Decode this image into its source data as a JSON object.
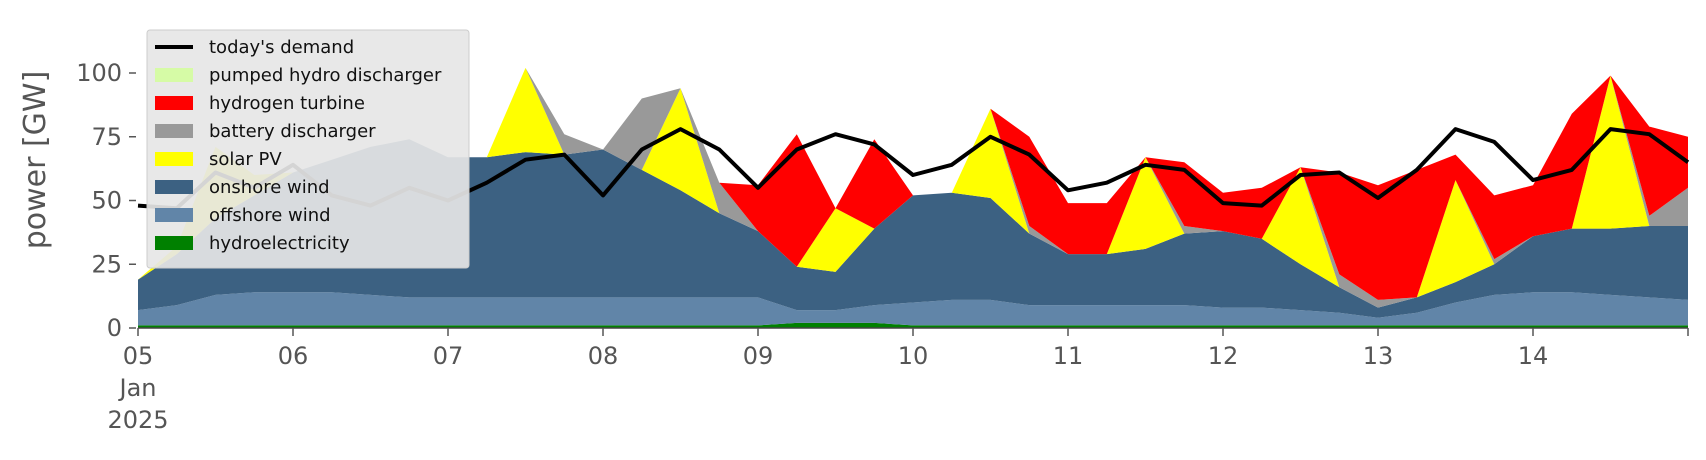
{
  "chart_data": {
    "type": "area",
    "ylabel": "power [GW]",
    "ylim": [
      0,
      120
    ],
    "xlim": [
      "2025-01-05T00:00",
      "2025-01-15T00:00"
    ],
    "x_ticks": [
      {
        "date": "2025-01-05",
        "label": "05",
        "sublabel": [
          "Jan",
          "2025"
        ]
      },
      {
        "date": "2025-01-06",
        "label": "06"
      },
      {
        "date": "2025-01-07",
        "label": "07"
      },
      {
        "date": "2025-01-08",
        "label": "08"
      },
      {
        "date": "2025-01-09",
        "label": "09"
      },
      {
        "date": "2025-01-10",
        "label": "10"
      },
      {
        "date": "2025-01-11",
        "label": "11"
      },
      {
        "date": "2025-01-12",
        "label": "12"
      },
      {
        "date": "2025-01-13",
        "label": "13"
      },
      {
        "date": "2025-01-14",
        "label": "14"
      }
    ],
    "y_ticks": [
      0,
      25,
      50,
      75,
      100
    ],
    "grid": false,
    "legend_position": "top-left",
    "stack_order_bottom_to_top": [
      "hydroelectricity",
      "offshore wind",
      "onshore wind",
      "solar PV",
      "battery discharger",
      "hydrogen turbine",
      "pumped hydro discharger"
    ],
    "x": [
      "2025-01-05T00:00",
      "2025-01-05T06:00",
      "2025-01-05T12:00",
      "2025-01-05T18:00",
      "2025-01-06T00:00",
      "2025-01-06T06:00",
      "2025-01-06T12:00",
      "2025-01-06T18:00",
      "2025-01-07T00:00",
      "2025-01-07T06:00",
      "2025-01-07T12:00",
      "2025-01-07T18:00",
      "2025-01-08T00:00",
      "2025-01-08T06:00",
      "2025-01-08T12:00",
      "2025-01-08T18:00",
      "2025-01-09T00:00",
      "2025-01-09T06:00",
      "2025-01-09T12:00",
      "2025-01-09T18:00",
      "2025-01-10T00:00",
      "2025-01-10T06:00",
      "2025-01-10T12:00",
      "2025-01-10T18:00",
      "2025-01-11T00:00",
      "2025-01-11T06:00",
      "2025-01-11T12:00",
      "2025-01-11T18:00",
      "2025-01-12T00:00",
      "2025-01-12T06:00",
      "2025-01-12T12:00",
      "2025-01-12T18:00",
      "2025-01-13T00:00",
      "2025-01-13T06:00",
      "2025-01-13T12:00",
      "2025-01-13T18:00",
      "2025-01-14T00:00",
      "2025-01-14T06:00",
      "2025-01-14T12:00",
      "2025-01-14T18:00",
      "2025-01-15T00:00"
    ],
    "series": [
      {
        "name": "hydroelectricity",
        "color": "#008000",
        "values": [
          1,
          1,
          1,
          1,
          1,
          1,
          1,
          1,
          1,
          1,
          1,
          1,
          1,
          1,
          1,
          1,
          1,
          2,
          2,
          2,
          1,
          1,
          1,
          1,
          1,
          1,
          1,
          1,
          1,
          1,
          1,
          1,
          1,
          1,
          1,
          1,
          1,
          1,
          1,
          1,
          1
        ]
      },
      {
        "name": "offshore wind",
        "color": "#6185a8",
        "values": [
          6,
          8,
          12,
          13,
          13,
          13,
          12,
          11,
          11,
          11,
          11,
          11,
          11,
          11,
          11,
          11,
          11,
          5,
          5,
          7,
          9,
          10,
          10,
          8,
          8,
          8,
          8,
          8,
          7,
          7,
          6,
          5,
          3,
          5,
          9,
          12,
          13,
          13,
          12,
          11,
          10
        ]
      },
      {
        "name": "onshore wind",
        "color": "#3c6182",
        "values": [
          12,
          20,
          30,
          38,
          47,
          52,
          58,
          62,
          55,
          55,
          57,
          56,
          58,
          50,
          42,
          33,
          26,
          17,
          15,
          30,
          42,
          42,
          40,
          28,
          20,
          20,
          22,
          28,
          30,
          27,
          18,
          10,
          4,
          6,
          8,
          12,
          22,
          25,
          26,
          28,
          29
        ]
      },
      {
        "name": "solar PV",
        "color": "#ffff00",
        "values": [
          0,
          3,
          28,
          8,
          0,
          0,
          0,
          0,
          0,
          0,
          33,
          0,
          0,
          0,
          40,
          0,
          0,
          0,
          25,
          0,
          0,
          0,
          35,
          0,
          0,
          0,
          36,
          0,
          0,
          0,
          38,
          0,
          0,
          0,
          40,
          0,
          0,
          0,
          60,
          0,
          0
        ]
      },
      {
        "name": "battery discharger",
        "color": "#999999",
        "values": [
          0,
          0,
          0,
          0,
          0,
          0,
          0,
          0,
          0,
          0,
          0,
          8,
          0,
          28,
          0,
          12,
          0,
          0,
          0,
          0,
          0,
          0,
          0,
          3,
          0,
          0,
          0,
          3,
          0,
          0,
          0,
          5,
          3,
          0,
          0,
          2,
          0,
          0,
          0,
          4,
          15
        ]
      },
      {
        "name": "hydrogen turbine",
        "color": "#ff0000",
        "values": [
          0,
          0,
          0,
          0,
          0,
          0,
          0,
          0,
          0,
          0,
          0,
          0,
          0,
          0,
          0,
          0,
          18,
          52,
          0,
          35,
          0,
          0,
          0,
          35,
          20,
          20,
          0,
          25,
          15,
          20,
          0,
          40,
          45,
          50,
          10,
          25,
          20,
          45,
          0,
          35,
          20
        ]
      },
      {
        "name": "pumped hydro discharger",
        "color": "#d6fba6",
        "values": [
          0,
          0,
          0,
          0,
          0,
          0,
          0,
          0,
          0,
          0,
          0,
          0,
          0,
          0,
          0,
          0,
          0,
          0,
          0,
          0,
          0,
          0,
          0,
          0,
          0,
          0,
          0,
          0,
          0,
          0,
          0,
          0,
          0,
          0,
          0,
          0,
          0,
          0,
          0,
          0,
          0
        ]
      }
    ],
    "demand": {
      "name": "today's demand",
      "color": "#000000",
      "points": [
        [
          "2025-01-05T00:00",
          48
        ],
        [
          "2025-01-05T06:00",
          47
        ],
        [
          "2025-01-05T12:00",
          61
        ],
        [
          "2025-01-05T18:00",
          55
        ],
        [
          "2025-01-06T00:00",
          64
        ],
        [
          "2025-01-06T06:00",
          52
        ],
        [
          "2025-01-06T12:00",
          48
        ],
        [
          "2025-01-06T18:00",
          55
        ],
        [
          "2025-01-07T00:00",
          50
        ],
        [
          "2025-01-07T06:00",
          57
        ],
        [
          "2025-01-07T12:00",
          66
        ],
        [
          "2025-01-07T18:00",
          68
        ],
        [
          "2025-01-08T00:00",
          52
        ],
        [
          "2025-01-08T06:00",
          70
        ],
        [
          "2025-01-08T12:00",
          78
        ],
        [
          "2025-01-08T18:00",
          70
        ],
        [
          "2025-01-09T00:00",
          55
        ],
        [
          "2025-01-09T06:00",
          70
        ],
        [
          "2025-01-09T12:00",
          76
        ],
        [
          "2025-01-09T18:00",
          72
        ],
        [
          "2025-01-10T00:00",
          60
        ],
        [
          "2025-01-10T06:00",
          64
        ],
        [
          "2025-01-10T12:00",
          75
        ],
        [
          "2025-01-10T18:00",
          68
        ],
        [
          "2025-01-11T00:00",
          54
        ],
        [
          "2025-01-11T06:00",
          57
        ],
        [
          "2025-01-11T12:00",
          64
        ],
        [
          "2025-01-11T18:00",
          62
        ],
        [
          "2025-01-12T00:00",
          49
        ],
        [
          "2025-01-12T06:00",
          48
        ],
        [
          "2025-01-12T12:00",
          60
        ],
        [
          "2025-01-12T18:00",
          61
        ],
        [
          "2025-01-13T00:00",
          51
        ],
        [
          "2025-01-13T06:00",
          62
        ],
        [
          "2025-01-13T12:00",
          78
        ],
        [
          "2025-01-13T18:00",
          73
        ],
        [
          "2025-01-14T00:00",
          58
        ],
        [
          "2025-01-14T06:00",
          62
        ],
        [
          "2025-01-14T12:00",
          78
        ],
        [
          "2025-01-14T18:00",
          76
        ],
        [
          "2025-01-15T00:00",
          65
        ]
      ]
    },
    "legend": [
      {
        "label": "today's demand",
        "color": "#000000",
        "kind": "line"
      },
      {
        "label": "pumped hydro discharger",
        "color": "#d6fba6",
        "kind": "patch"
      },
      {
        "label": "hydrogen turbine",
        "color": "#ff0000",
        "kind": "patch"
      },
      {
        "label": "battery discharger",
        "color": "#999999",
        "kind": "patch"
      },
      {
        "label": "solar PV",
        "color": "#ffff00",
        "kind": "patch"
      },
      {
        "label": "onshore wind",
        "color": "#3c6182",
        "kind": "patch"
      },
      {
        "label": "offshore wind",
        "color": "#6185a8",
        "kind": "patch"
      },
      {
        "label": "hydroelectricity",
        "color": "#008000",
        "kind": "patch"
      }
    ]
  }
}
